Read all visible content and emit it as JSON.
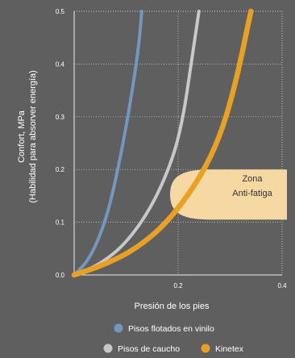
{
  "chart_data": {
    "type": "line",
    "xlabel": "Presión de los pies",
    "ylabel": [
      "Confort, MPa",
      "(Habilidad para absorver energía)"
    ],
    "xlim": [
      0,
      0.4
    ],
    "ylim": [
      0,
      0.5
    ],
    "x_ticks": [
      0.2,
      0.4
    ],
    "y_ticks": [
      0.0,
      0.1,
      0.2,
      0.3,
      0.4,
      0.5
    ],
    "grid": true,
    "series": [
      {
        "name": "Pisos flotados en vinilo",
        "color": "#7497c0",
        "x": [
          0.0,
          0.03,
          0.06,
          0.08,
          0.1,
          0.115,
          0.125,
          0.13
        ],
        "y": [
          0.0,
          0.03,
          0.1,
          0.18,
          0.28,
          0.37,
          0.44,
          0.5
        ]
      },
      {
        "name": "Pisos de caucho",
        "color": "#c8c8c8",
        "x": [
          0.0,
          0.05,
          0.1,
          0.15,
          0.19,
          0.21,
          0.225,
          0.24
        ],
        "y": [
          0.0,
          0.02,
          0.06,
          0.13,
          0.22,
          0.3,
          0.4,
          0.5
        ]
      },
      {
        "name": "Kinetex",
        "color": "#e8a025",
        "x": [
          0.0,
          0.06,
          0.12,
          0.18,
          0.24,
          0.28,
          0.31,
          0.34
        ],
        "y": [
          0.0,
          0.02,
          0.05,
          0.1,
          0.18,
          0.26,
          0.36,
          0.5
        ]
      }
    ],
    "annotations": [
      {
        "text": [
          "Zona",
          "Anti-fatiga"
        ],
        "color": "#f5d8a2"
      }
    ],
    "legend": {
      "placement": "bottom",
      "rows": [
        [
          "Pisos flotados en vinilo"
        ],
        [
          "Pisos de caucho",
          "Kinetex"
        ]
      ]
    }
  }
}
